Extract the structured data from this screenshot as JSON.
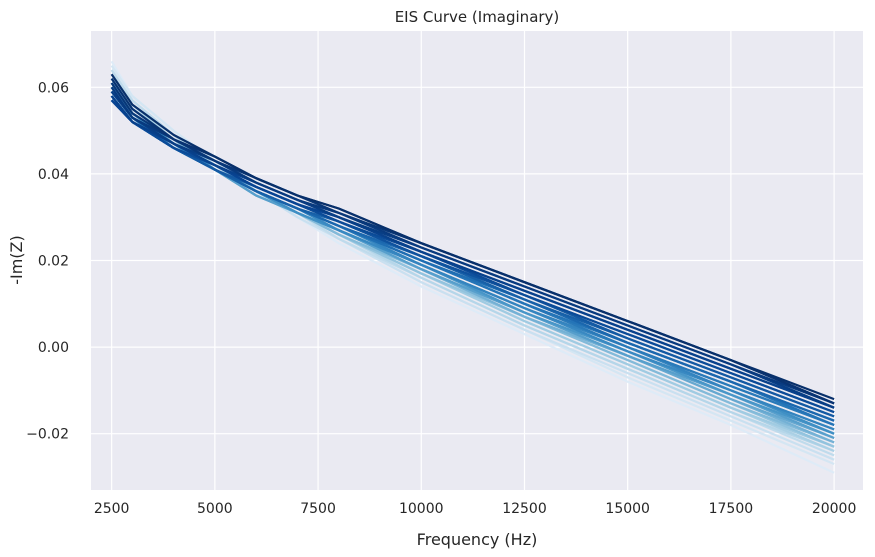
{
  "chart_data": {
    "type": "line",
    "title": "EIS Curve (Imaginary)",
    "xlabel": "Frequency (Hz)",
    "ylabel": "-Im(Z)",
    "xlim": [
      2000,
      20700
    ],
    "ylim": [
      -0.033,
      0.073
    ],
    "xticks": [
      2500,
      5000,
      7500,
      10000,
      12500,
      15000,
      17500,
      20000
    ],
    "xtick_labels": [
      "2500",
      "5000",
      "7500",
      "10000",
      "12500",
      "15000",
      "17500",
      "20000"
    ],
    "yticks": [
      -0.02,
      0.0,
      0.02,
      0.04,
      0.06
    ],
    "ytick_labels": [
      "−0.02",
      "0.00",
      "0.02",
      "0.04",
      "0.06"
    ],
    "grid": true,
    "background": "#eaeaf2",
    "grid_color": "#ffffff",
    "colormap": "Blues",
    "colormap_light": "#deebf7",
    "colormap_dark": "#08306b",
    "x": [
      2500,
      3000,
      4000,
      5000,
      6000,
      7000,
      8000,
      10000,
      12500,
      15000,
      17500,
      20000
    ],
    "series_note_count": 32,
    "series": [
      {
        "values": [
          0.066,
          0.058,
          0.05,
          0.043,
          0.036,
          0.03,
          0.024,
          0.014,
          0.003,
          -0.008,
          -0.018,
          -0.029
        ]
      },
      {
        "values": [
          0.065,
          0.058,
          0.05,
          0.043,
          0.036,
          0.03,
          0.025,
          0.015,
          0.004,
          -0.007,
          -0.017,
          -0.027
        ]
      },
      {
        "values": [
          0.064,
          0.057,
          0.049,
          0.042,
          0.036,
          0.03,
          0.025,
          0.015,
          0.004,
          -0.006,
          -0.016,
          -0.026
        ]
      },
      {
        "values": [
          0.064,
          0.057,
          0.049,
          0.042,
          0.036,
          0.031,
          0.025,
          0.016,
          0.005,
          -0.005,
          -0.015,
          -0.025
        ]
      },
      {
        "values": [
          0.063,
          0.056,
          0.049,
          0.042,
          0.036,
          0.031,
          0.026,
          0.016,
          0.005,
          -0.005,
          -0.015,
          -0.024
        ]
      },
      {
        "values": [
          0.063,
          0.056,
          0.048,
          0.042,
          0.036,
          0.031,
          0.026,
          0.017,
          0.006,
          -0.004,
          -0.014,
          -0.024
        ]
      },
      {
        "values": [
          0.062,
          0.055,
          0.048,
          0.042,
          0.036,
          0.031,
          0.026,
          0.017,
          0.006,
          -0.004,
          -0.014,
          -0.023
        ]
      },
      {
        "values": [
          0.062,
          0.055,
          0.048,
          0.041,
          0.036,
          0.031,
          0.026,
          0.017,
          0.007,
          -0.003,
          -0.013,
          -0.023
        ]
      },
      {
        "values": [
          0.061,
          0.055,
          0.048,
          0.041,
          0.035,
          0.031,
          0.026,
          0.018,
          0.007,
          -0.003,
          -0.013,
          -0.022
        ]
      },
      {
        "values": [
          0.061,
          0.054,
          0.047,
          0.041,
          0.035,
          0.031,
          0.027,
          0.018,
          0.007,
          -0.002,
          -0.012,
          -0.022
        ]
      },
      {
        "values": [
          0.061,
          0.054,
          0.047,
          0.041,
          0.035,
          0.031,
          0.027,
          0.018,
          0.008,
          -0.002,
          -0.012,
          -0.021
        ]
      },
      {
        "values": [
          0.06,
          0.054,
          0.047,
          0.041,
          0.035,
          0.031,
          0.027,
          0.018,
          0.008,
          -0.002,
          -0.011,
          -0.021
        ]
      },
      {
        "values": [
          0.06,
          0.054,
          0.047,
          0.041,
          0.036,
          0.031,
          0.027,
          0.019,
          0.008,
          -0.001,
          -0.011,
          -0.02
        ]
      },
      {
        "values": [
          0.06,
          0.053,
          0.047,
          0.041,
          0.036,
          0.031,
          0.027,
          0.019,
          0.009,
          -0.001,
          -0.01,
          -0.02
        ]
      },
      {
        "values": [
          0.059,
          0.053,
          0.047,
          0.041,
          0.036,
          0.032,
          0.027,
          0.019,
          0.009,
          -0.001,
          -0.01,
          -0.019
        ]
      },
      {
        "values": [
          0.059,
          0.053,
          0.046,
          0.041,
          0.036,
          0.032,
          0.028,
          0.019,
          0.009,
          0.0,
          -0.01,
          -0.019
        ]
      },
      {
        "values": [
          0.059,
          0.053,
          0.046,
          0.041,
          0.036,
          0.032,
          0.028,
          0.02,
          0.01,
          0.0,
          -0.009,
          -0.018
        ]
      },
      {
        "values": [
          0.059,
          0.053,
          0.046,
          0.041,
          0.036,
          0.032,
          0.028,
          0.02,
          0.01,
          0.0,
          -0.009,
          -0.018
        ]
      },
      {
        "values": [
          0.058,
          0.052,
          0.046,
          0.041,
          0.036,
          0.032,
          0.028,
          0.02,
          0.01,
          0.001,
          -0.008,
          -0.018
        ]
      },
      {
        "values": [
          0.058,
          0.052,
          0.046,
          0.041,
          0.036,
          0.032,
          0.028,
          0.02,
          0.011,
          0.001,
          -0.008,
          -0.017
        ]
      },
      {
        "values": [
          0.058,
          0.052,
          0.046,
          0.041,
          0.036,
          0.032,
          0.028,
          0.021,
          0.011,
          0.001,
          -0.008,
          -0.017
        ]
      },
      {
        "values": [
          0.058,
          0.052,
          0.046,
          0.041,
          0.036,
          0.032,
          0.029,
          0.021,
          0.011,
          0.002,
          -0.007,
          -0.016
        ]
      },
      {
        "values": [
          0.057,
          0.052,
          0.046,
          0.041,
          0.037,
          0.033,
          0.029,
          0.021,
          0.012,
          0.002,
          -0.007,
          -0.016
        ]
      },
      {
        "values": [
          0.057,
          0.052,
          0.046,
          0.042,
          0.037,
          0.033,
          0.029,
          0.021,
          0.012,
          0.003,
          -0.006,
          -0.015
        ]
      },
      {
        "values": [
          0.057,
          0.052,
          0.046,
          0.042,
          0.037,
          0.033,
          0.029,
          0.022,
          0.012,
          0.003,
          -0.006,
          -0.015
        ]
      },
      {
        "values": [
          0.057,
          0.052,
          0.047,
          0.042,
          0.037,
          0.033,
          0.03,
          0.022,
          0.013,
          0.004,
          -0.005,
          -0.014
        ]
      },
      {
        "values": [
          0.058,
          0.052,
          0.047,
          0.042,
          0.038,
          0.034,
          0.03,
          0.022,
          0.013,
          0.004,
          -0.005,
          -0.014
        ]
      },
      {
        "values": [
          0.059,
          0.053,
          0.047,
          0.043,
          0.038,
          0.034,
          0.03,
          0.023,
          0.014,
          0.005,
          -0.004,
          -0.014
        ]
      },
      {
        "values": [
          0.06,
          0.053,
          0.048,
          0.043,
          0.038,
          0.034,
          0.031,
          0.023,
          0.014,
          0.005,
          -0.004,
          -0.013
        ]
      },
      {
        "values": [
          0.061,
          0.054,
          0.048,
          0.043,
          0.039,
          0.035,
          0.031,
          0.024,
          0.015,
          0.006,
          -0.003,
          -0.013
        ]
      },
      {
        "values": [
          0.062,
          0.055,
          0.048,
          0.044,
          0.039,
          0.035,
          0.032,
          0.024,
          0.015,
          0.006,
          -0.003,
          -0.013
        ]
      },
      {
        "values": [
          0.063,
          0.056,
          0.049,
          0.044,
          0.039,
          0.035,
          0.032,
          0.024,
          0.015,
          0.006,
          -0.003,
          -0.012
        ]
      }
    ]
  }
}
